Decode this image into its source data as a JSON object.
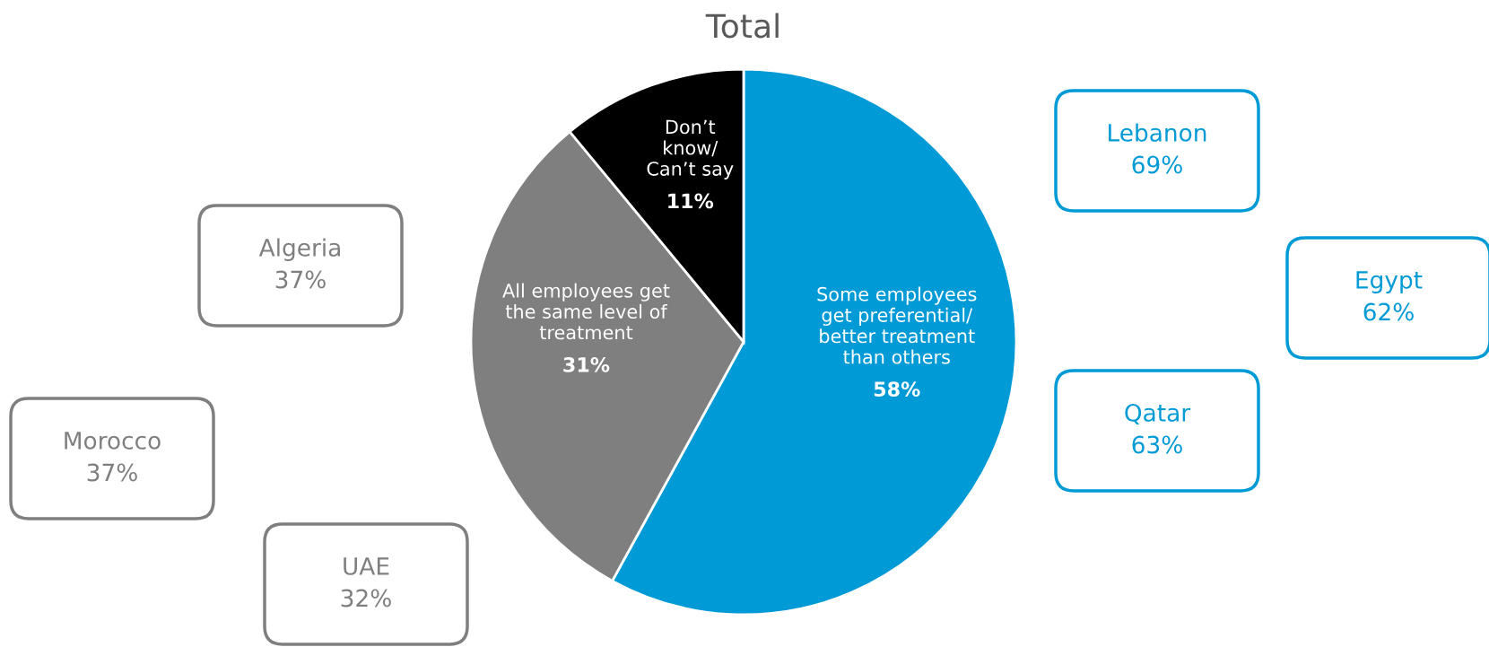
{
  "chart_data": {
    "type": "pie",
    "title": "Total",
    "categories": [
      "Some employees\nget preferential/\nbetter treatment\nthan others",
      "All employees get\nthe same level of\ntreatment",
      "Don’t\nknow/\nCan’t say"
    ],
    "values": [
      58,
      31,
      11
    ],
    "colors": [
      "#009ad6",
      "#7f7f7f",
      "#000000"
    ],
    "value_labels": [
      "58%",
      "31%",
      "11%"
    ],
    "annotations": [
      "Lebanon\n69%",
      "Egypt\n62%",
      "Qatar\n63%",
      "Algeria\n37%",
      "Morocco\n37%",
      "UAE\n32%"
    ]
  }
}
